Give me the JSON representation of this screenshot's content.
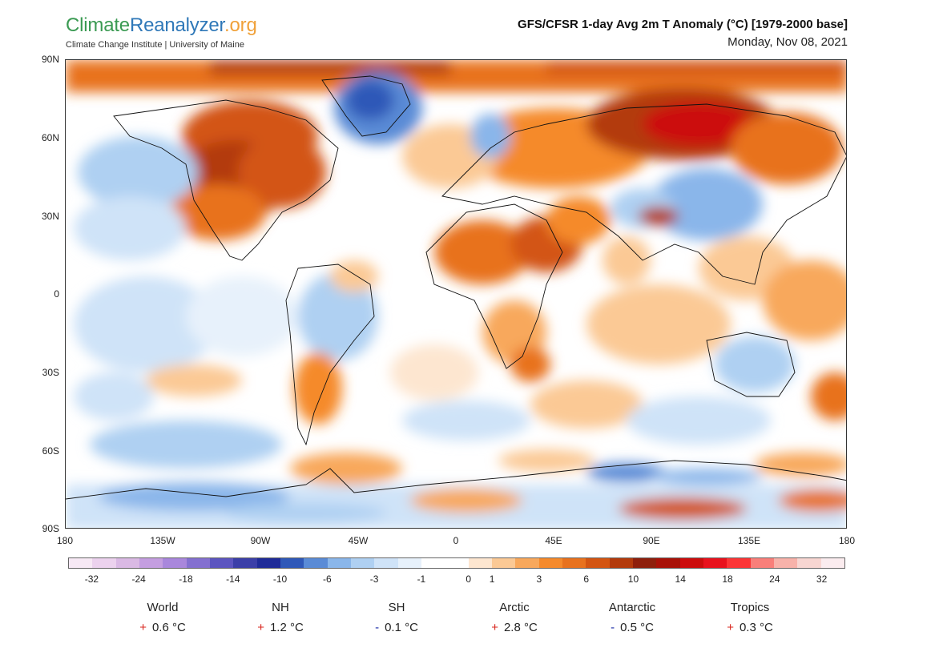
{
  "header": {
    "brand_part1": "Climate",
    "brand_part2": "Reanalyzer",
    "brand_part3": ".org",
    "brand_sub": "Climate Change Institute | University of Maine",
    "title": "GFS/CFSR 1-day Avg 2m T Anomaly (°C) [1979-2000 base]",
    "date": "Monday, Nov 08, 2021"
  },
  "map": {
    "lat_labels": [
      "90N",
      "60N",
      "30N",
      "0",
      "30S",
      "60S",
      "90S"
    ],
    "lon_labels": [
      "180",
      "135W",
      "90W",
      "45W",
      "0",
      "45E",
      "90E",
      "135E",
      "180"
    ]
  },
  "colorbar": {
    "labels": [
      "-32",
      "-24",
      "-18",
      "-14",
      "-10",
      "-6",
      "-3",
      "-1",
      "0",
      "1",
      "3",
      "6",
      "10",
      "14",
      "18",
      "24",
      "32"
    ],
    "colors": [
      "#f7e9f5",
      "#ecd2ee",
      "#dab9e4",
      "#c49ee0",
      "#a987dc",
      "#8470d0",
      "#5c55c0",
      "#3b3fa8",
      "#1f2b98",
      "#2f58b8",
      "#5a8bd6",
      "#8ab6ea",
      "#afd0f2",
      "#cfe3f8",
      "#e7f1fb",
      "#ffffff",
      "#ffffff",
      "#fde6d0",
      "#fbc995",
      "#f8a85c",
      "#f58a2c",
      "#e8721e",
      "#d35512",
      "#b33a0c",
      "#8e1f0c",
      "#a81108",
      "#cc0d0d",
      "#e8121d",
      "#fb3536",
      "#f97f7a",
      "#f8b2aa",
      "#f8d6d2",
      "#fbecef"
    ]
  },
  "regions": [
    {
      "name": "World",
      "sign": "+",
      "value": "0.6 °C"
    },
    {
      "name": "NH",
      "sign": "+",
      "value": "1.2 °C"
    },
    {
      "name": "SH",
      "sign": "-",
      "value": "0.1 °C"
    },
    {
      "name": "Arctic",
      "sign": "+",
      "value": "2.8 °C"
    },
    {
      "name": "Antarctic",
      "sign": "-",
      "value": "0.5 °C"
    },
    {
      "name": "Tropics",
      "sign": "+",
      "value": "0.3 °C"
    }
  ]
}
